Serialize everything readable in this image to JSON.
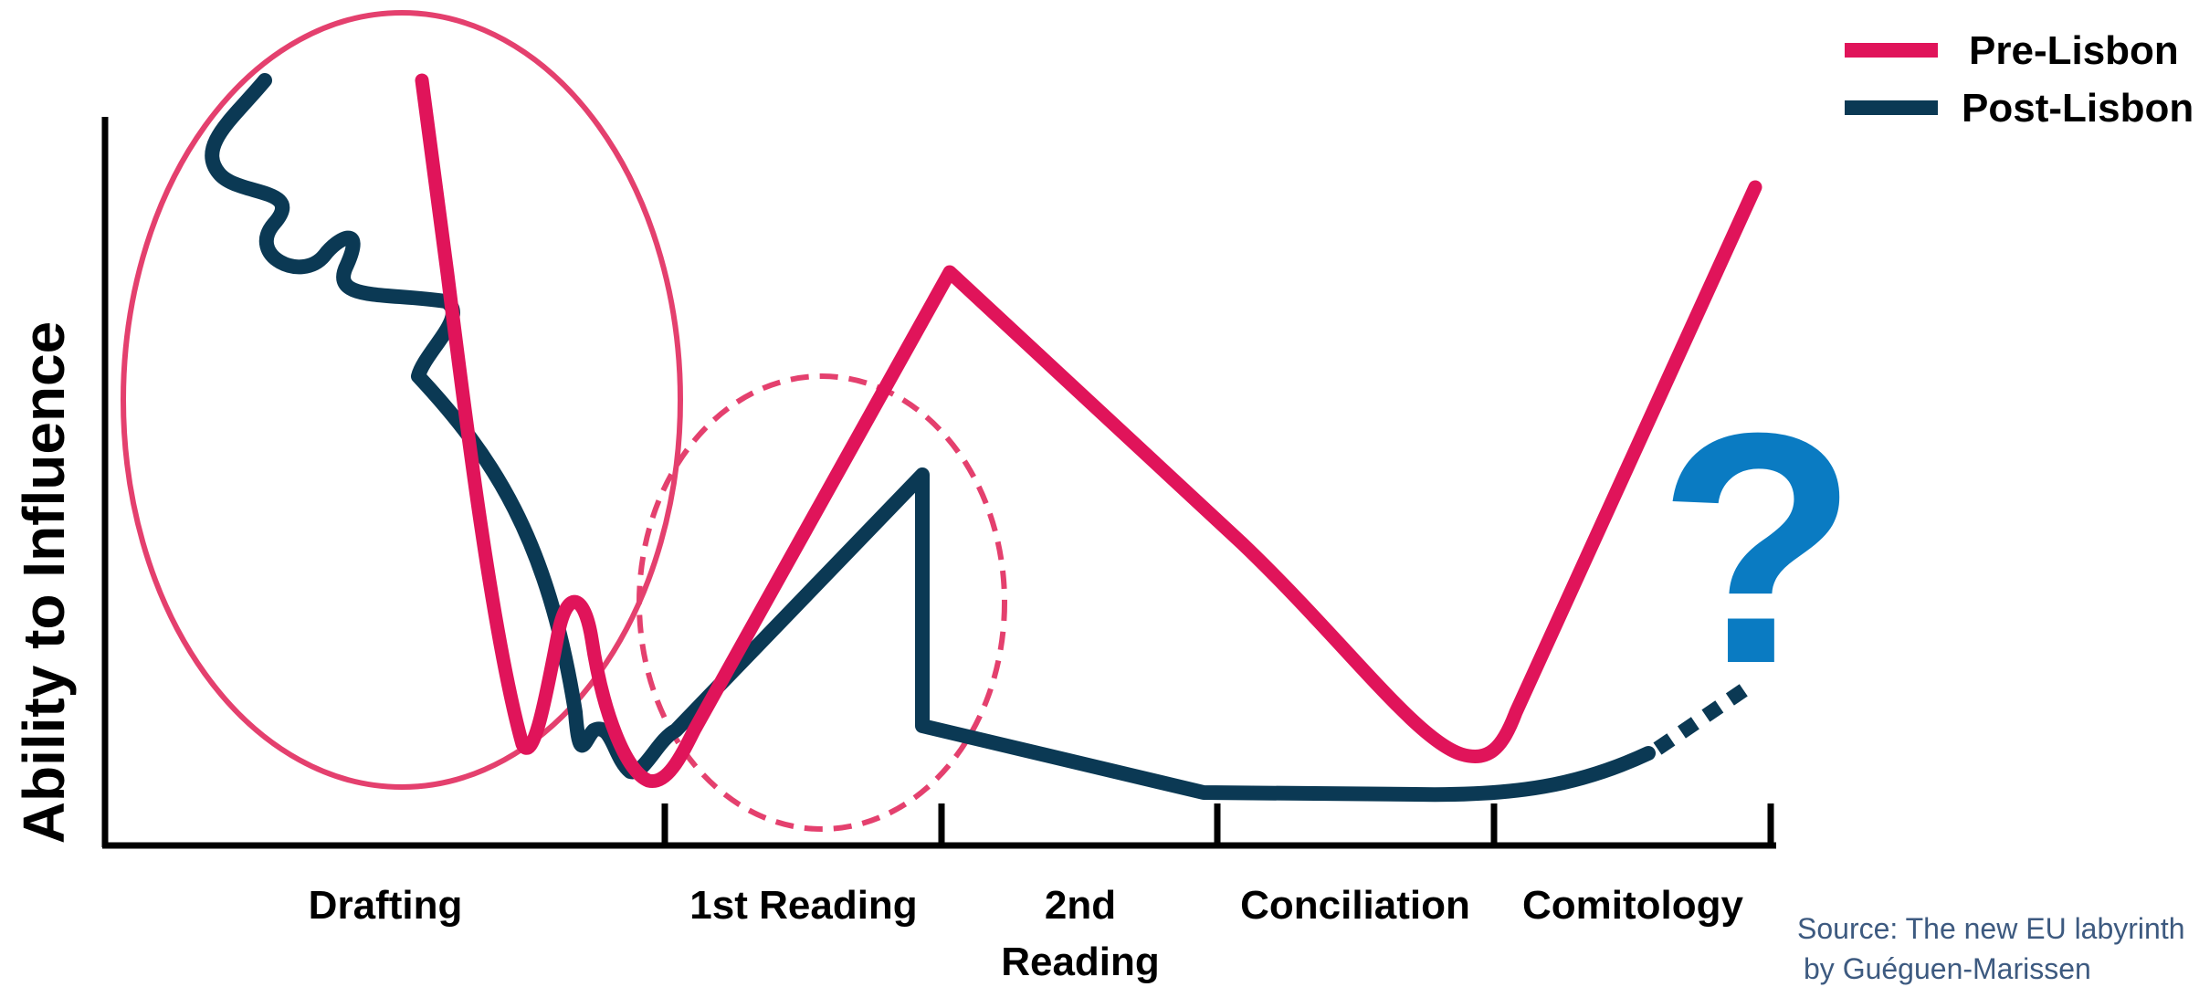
{
  "chart_data": {
    "type": "line",
    "title": "",
    "ylabel": "Ability to Influence",
    "xlabel": "",
    "grid": false,
    "legend_position": "top-right",
    "categories": [
      "Drafting",
      "1st Reading",
      "2nd Reading",
      "Conciliation",
      "Comitology"
    ],
    "series": [
      {
        "name": "Pre-Lisbon",
        "color": "#e0145a"
      },
      {
        "name": "Post-Lisbon",
        "color": "#0b3954"
      }
    ],
    "annotation_mark": "?",
    "annotation_color": "#0a7bc2",
    "source": [
      "Source: The new EU labyrinth",
      "by Guéguen-Marissen"
    ]
  }
}
